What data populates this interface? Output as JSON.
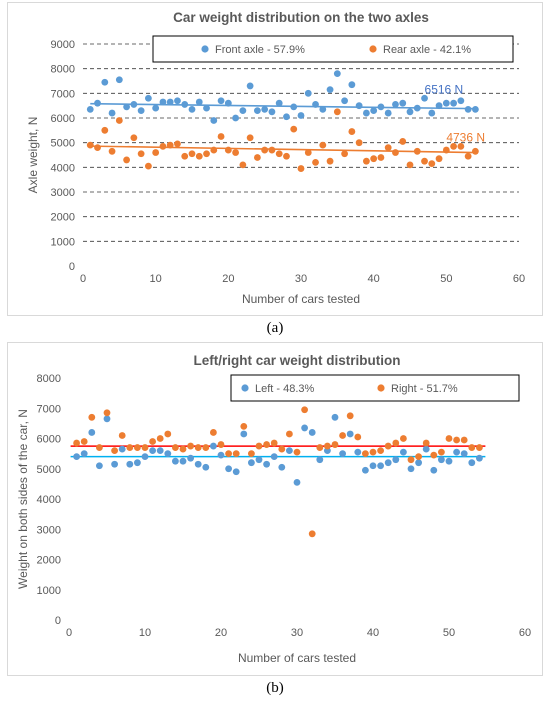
{
  "panels": [
    {
      "label": "(a)"
    },
    {
      "label": "(b)"
    }
  ],
  "chart_data": [
    {
      "type": "scatter",
      "title": "Car weight distribution on the two axles",
      "xlabel": "Number of cars tested",
      "ylabel": "Axle weight, N",
      "xlim": [
        0,
        60
      ],
      "ylim": [
        0,
        9000
      ],
      "xticks": [
        0,
        10,
        20,
        30,
        40,
        50,
        60
      ],
      "yticks": [
        0,
        1000,
        2000,
        3000,
        4000,
        5000,
        6000,
        7000,
        8000,
        9000
      ],
      "grid": "horizontal dashed",
      "legend_position": "top-right",
      "series": [
        {
          "name": "Front axle - 57.9%",
          "color": "#5b9bd5",
          "x": [
            1,
            2,
            3,
            4,
            5,
            6,
            7,
            8,
            9,
            10,
            11,
            12,
            13,
            14,
            15,
            16,
            17,
            18,
            19,
            20,
            21,
            22,
            23,
            24,
            25,
            26,
            27,
            28,
            29,
            30,
            31,
            32,
            33,
            34,
            35,
            36,
            37,
            38,
            39,
            40,
            41,
            42,
            43,
            44,
            45,
            46,
            47,
            48,
            49,
            50,
            51,
            52,
            53,
            54
          ],
          "y": [
            6350,
            6600,
            7450,
            6200,
            7550,
            6450,
            6550,
            6300,
            6800,
            6400,
            6650,
            6650,
            6700,
            6550,
            6350,
            6650,
            6400,
            5900,
            6700,
            6600,
            6000,
            6300,
            7300,
            6300,
            6350,
            6250,
            6600,
            6050,
            6450,
            6100,
            7000,
            6550,
            6350,
            7150,
            7800,
            6700,
            7350,
            6500,
            6200,
            6300,
            6450,
            6200,
            6550,
            6600,
            6250,
            6400,
            6800,
            6200,
            6500,
            6600,
            6600,
            6700,
            6350,
            6350
          ]
        },
        {
          "name": "Rear axle - 42.1%",
          "color": "#ed7d31",
          "x": [
            1,
            2,
            3,
            4,
            5,
            6,
            7,
            8,
            9,
            10,
            11,
            12,
            13,
            14,
            15,
            16,
            17,
            18,
            19,
            20,
            21,
            22,
            23,
            24,
            25,
            26,
            27,
            28,
            29,
            30,
            31,
            32,
            33,
            34,
            35,
            36,
            37,
            38,
            39,
            40,
            41,
            42,
            43,
            44,
            45,
            46,
            47,
            48,
            49,
            50,
            51,
            52,
            53,
            54
          ],
          "y": [
            4900,
            4800,
            5500,
            4650,
            5900,
            4300,
            5200,
            4550,
            4050,
            4600,
            4850,
            4900,
            4950,
            4450,
            4550,
            4450,
            4550,
            4700,
            5250,
            4700,
            4600,
            4100,
            5200,
            4400,
            4700,
            4700,
            4550,
            4450,
            5550,
            3950,
            4600,
            4200,
            4900,
            4250,
            6250,
            4550,
            5450,
            5000,
            4250,
            4350,
            4400,
            4800,
            4600,
            5050,
            4100,
            4650,
            4250,
            4150,
            4350,
            4700,
            4850,
            4850,
            4450,
            4650
          ]
        }
      ],
      "trendlines": [
        {
          "series": "Front axle - 57.9%",
          "x": [
            1,
            54
          ],
          "y": [
            6580,
            6380
          ]
        },
        {
          "series": "Rear axle - 42.1%",
          "x": [
            1,
            54
          ],
          "y": [
            4860,
            4600
          ]
        }
      ],
      "annotations": [
        {
          "text": "6516 N",
          "x": 47,
          "y": 7000,
          "color": "#4472c4"
        },
        {
          "text": "4736 N",
          "x": 50,
          "y": 5050,
          "color": "#ed7d31"
        }
      ]
    },
    {
      "type": "scatter",
      "title": "Left/right car weight distribution",
      "xlabel": "Number  of cars tested",
      "ylabel": "Weight on both sides of the car, N",
      "xlim": [
        0,
        60
      ],
      "ylim": [
        0,
        8000
      ],
      "xticks": [
        0,
        10,
        20,
        30,
        40,
        50,
        60
      ],
      "yticks": [
        0,
        1000,
        2000,
        3000,
        4000,
        5000,
        6000,
        7000,
        8000
      ],
      "grid": "none",
      "legend_position": "top-right",
      "series": [
        {
          "name": "Left - 48.3%",
          "color": "#5b9bd5",
          "x": [
            1,
            2,
            3,
            4,
            5,
            6,
            7,
            8,
            9,
            10,
            11,
            12,
            13,
            14,
            15,
            16,
            17,
            18,
            19,
            20,
            21,
            22,
            23,
            24,
            25,
            26,
            27,
            28,
            29,
            30,
            31,
            32,
            33,
            34,
            35,
            36,
            37,
            38,
            39,
            40,
            41,
            42,
            43,
            44,
            45,
            46,
            47,
            48,
            49,
            50,
            51,
            52,
            53,
            54
          ],
          "y": [
            5400,
            5500,
            6200,
            5100,
            6650,
            5150,
            5650,
            5150,
            5200,
            5400,
            5600,
            5600,
            5500,
            5250,
            5250,
            5350,
            5150,
            5050,
            5750,
            5450,
            5000,
            4900,
            6150,
            5200,
            5300,
            5150,
            5400,
            5050,
            5600,
            4550,
            6350,
            6200,
            5300,
            5600,
            6700,
            5500,
            6150,
            5550,
            4950,
            5100,
            5100,
            5200,
            5300,
            5550,
            5000,
            5200,
            5650,
            4950,
            5300,
            5250,
            5550,
            5500,
            5200,
            5350
          ]
        },
        {
          "name": "Right - 51.7%",
          "color": "#ed7d31",
          "x": [
            1,
            2,
            3,
            4,
            5,
            6,
            7,
            8,
            9,
            10,
            11,
            12,
            13,
            14,
            15,
            16,
            17,
            18,
            19,
            20,
            21,
            22,
            23,
            24,
            25,
            26,
            27,
            28,
            29,
            30,
            31,
            32,
            33,
            34,
            35,
            36,
            37,
            38,
            39,
            40,
            41,
            42,
            43,
            44,
            45,
            46,
            47,
            48,
            49,
            50,
            51,
            52,
            53,
            54
          ],
          "y": [
            5850,
            5900,
            6700,
            5700,
            6850,
            5600,
            6100,
            5700,
            5700,
            5700,
            5900,
            6000,
            6150,
            5700,
            5650,
            5750,
            5700,
            5700,
            6200,
            5800,
            5500,
            5500,
            6400,
            5500,
            5750,
            5800,
            5850,
            5650,
            6150,
            5550,
            6950,
            2850,
            5700,
            5750,
            5800,
            6100,
            6750,
            6050,
            5500,
            5550,
            5600,
            5750,
            5850,
            6000,
            5300,
            5400,
            5850,
            5450,
            5550,
            6000,
            5950,
            5950,
            5700,
            5700
          ]
        }
      ],
      "reference_lines": [
        {
          "series": "Left - 48.3%",
          "y": 5400
        },
        {
          "series": "Right - 51.7%",
          "y": 5750
        }
      ]
    }
  ]
}
